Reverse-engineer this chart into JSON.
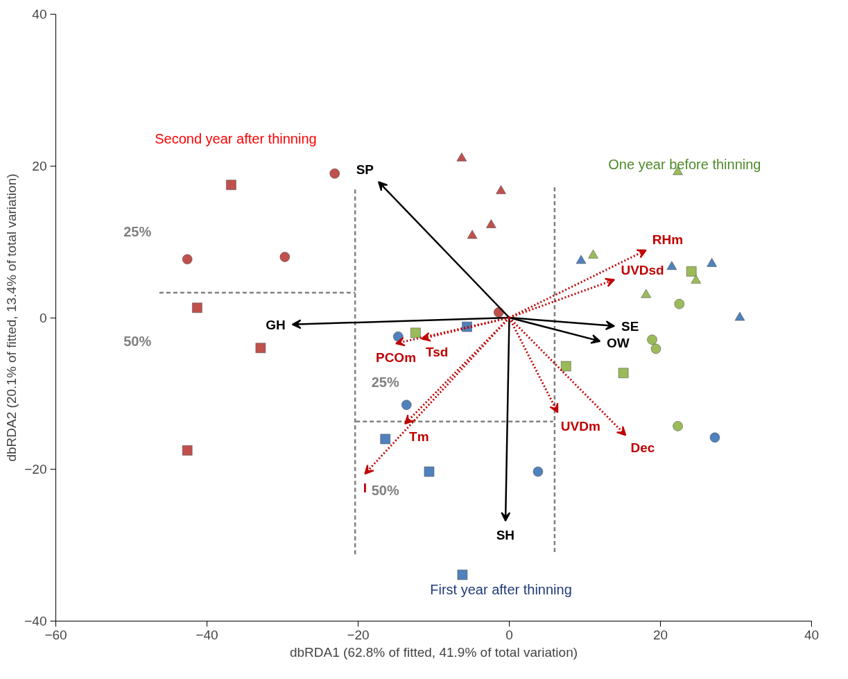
{
  "chart_data": {
    "type": "scatter",
    "xlabel": "dbRDA1 (62.8% of fitted, 41.9% of total variation)",
    "ylabel": "dbRDA2 (20.1% of fitted, 13.4% of total variation)",
    "xlim": [
      -60,
      40
    ],
    "ylim": [
      -40,
      40
    ],
    "xticks": [
      -60,
      -40,
      -20,
      0,
      20,
      40
    ],
    "yticks": [
      -40,
      -20,
      0,
      20,
      40
    ],
    "grid": false,
    "series": [
      {
        "type": "scatter",
        "marker": "circle",
        "color": "#c0504d",
        "x": [
          -23.1,
          -42.6,
          -29.7,
          -1.4
        ],
        "values": [
          19.0,
          7.7,
          8.0,
          0.7
        ]
      },
      {
        "type": "scatter",
        "marker": "square",
        "color": "#c0504d",
        "x": [
          -36.8,
          -41.3,
          -32.9,
          -42.6
        ],
        "values": [
          17.5,
          1.3,
          -4.0,
          -17.5
        ]
      },
      {
        "type": "scatter",
        "marker": "triangle",
        "color": "#c0504d",
        "x": [
          -6.3,
          -1.1,
          -2.4,
          -4.9
        ],
        "values": [
          21.0,
          16.7,
          12.2,
          10.8
        ]
      },
      {
        "type": "scatter",
        "marker": "circle",
        "color": "#9bbb59",
        "x": [
          22.5,
          18.9,
          19.4,
          22.3
        ],
        "values": [
          1.8,
          -2.9,
          -4.1,
          -14.3
        ]
      },
      {
        "type": "scatter",
        "marker": "square",
        "color": "#9bbb59",
        "x": [
          24.1,
          7.5,
          15.1,
          -12.4
        ],
        "values": [
          6.1,
          -6.4,
          -7.3,
          -2.0
        ]
      },
      {
        "type": "scatter",
        "marker": "triangle",
        "color": "#9bbb59",
        "x": [
          11.1,
          18.1,
          22.3,
          24.7
        ],
        "values": [
          8.2,
          3.0,
          19.2,
          4.9
        ]
      },
      {
        "type": "scatter",
        "marker": "circle",
        "color": "#4f81bd",
        "x": [
          -14.7,
          -13.6,
          3.8,
          27.2
        ],
        "values": [
          -2.5,
          -11.5,
          -20.3,
          -15.8
        ]
      },
      {
        "type": "scatter",
        "marker": "square",
        "color": "#4f81bd",
        "x": [
          -5.6,
          -16.4,
          -10.6,
          -6.2
        ],
        "values": [
          -1.2,
          -16.0,
          -20.3,
          -33.9
        ]
      },
      {
        "type": "scatter",
        "marker": "triangle",
        "color": "#4f81bd",
        "x": [
          9.5,
          21.5,
          26.8,
          30.5
        ],
        "values": [
          7.5,
          6.7,
          7.1,
          0.0
        ]
      },
      {
        "type": "line",
        "line_style": "dashed",
        "color": "#808080",
        "x": [
          -46.3,
          -20.4
        ],
        "values": [
          3.3,
          3.3
        ]
      },
      {
        "type": "line",
        "line_style": "dashed",
        "color": "#808080",
        "x": [
          -20.4,
          -20.4
        ],
        "values": [
          16.9,
          -31.5
        ]
      },
      {
        "type": "line",
        "line_style": "dashed",
        "color": "#808080",
        "x": [
          -20.3,
          5.8
        ],
        "values": [
          -13.7,
          -13.7
        ]
      },
      {
        "type": "line",
        "line_style": "dashed",
        "color": "#808080",
        "x": [
          6.0,
          6.0
        ],
        "values": [
          17.2,
          -31.1
        ]
      }
    ],
    "annotations": [
      "Second year after thinning",
      "One year before thinning",
      "First year after thinning",
      "25%",
      "50%",
      "25%",
      "50%",
      "SP",
      "GH",
      "SE",
      "OW",
      "SH",
      "RHm",
      "UVDsd",
      "PCOm",
      "Tsd",
      "Tm",
      "I",
      "UVDm",
      "Dec"
    ]
  }
}
